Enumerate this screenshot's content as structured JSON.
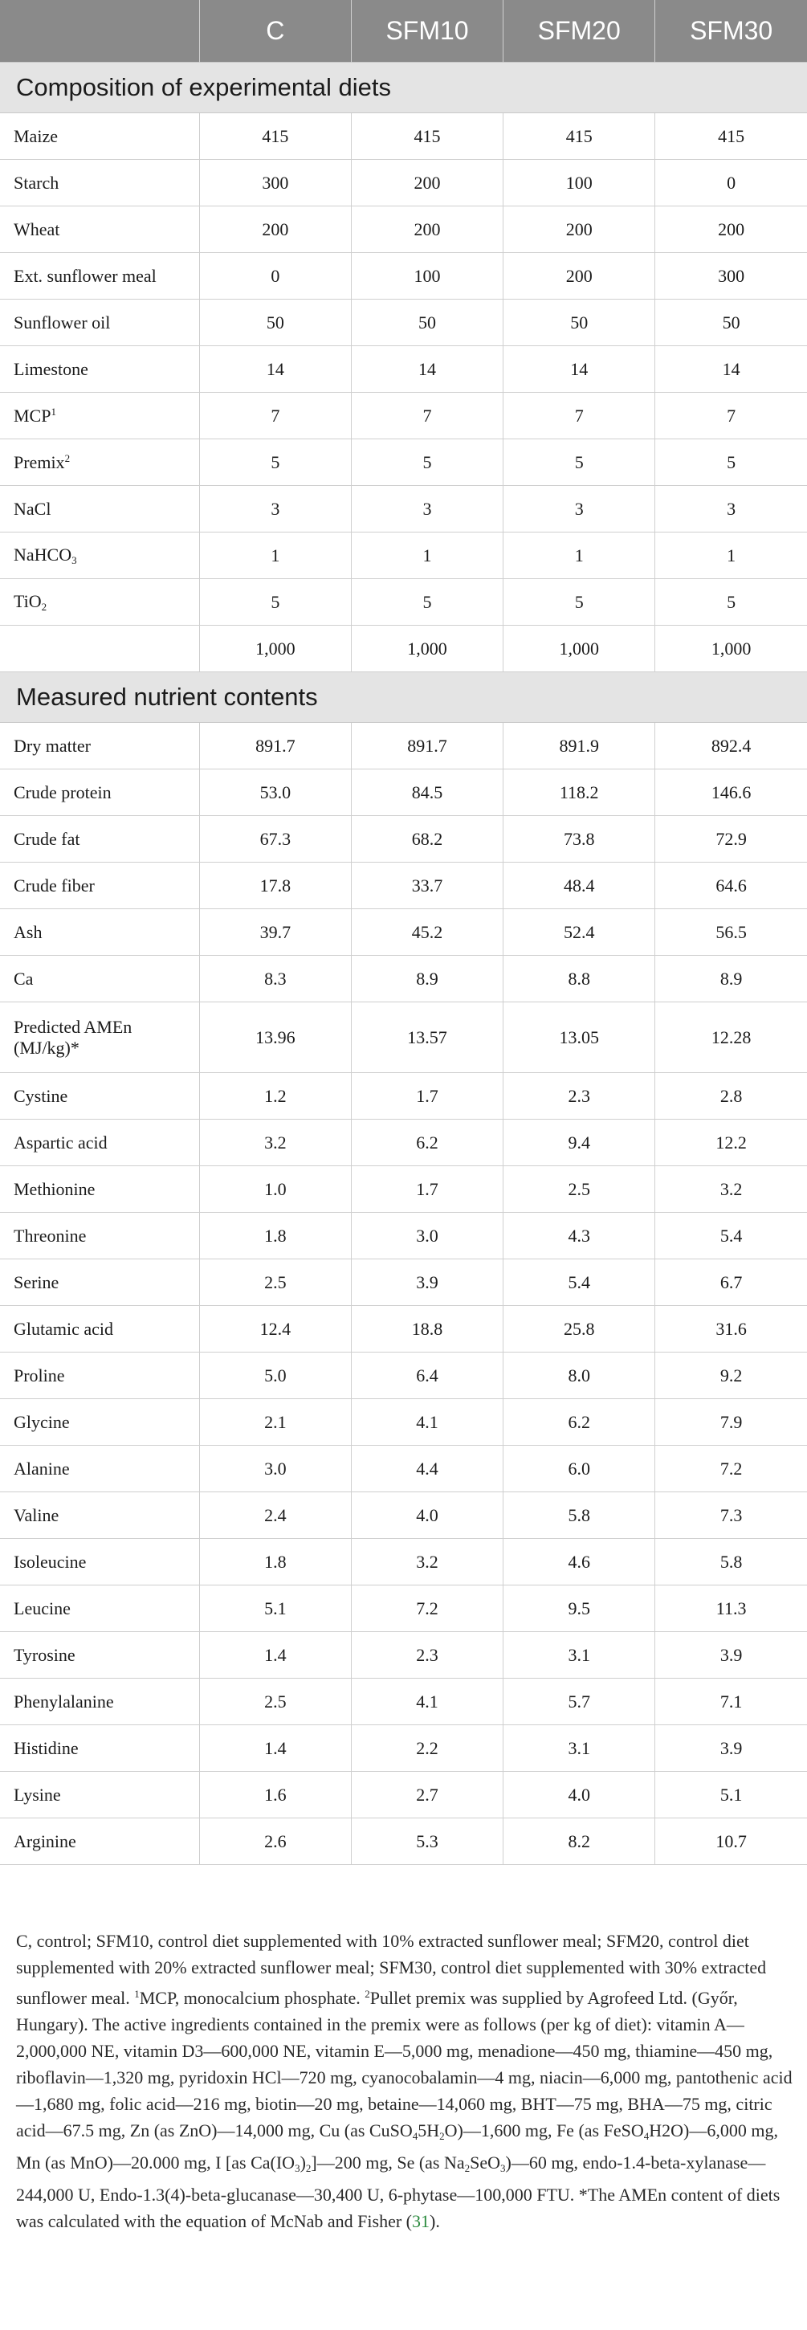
{
  "header": {
    "col0": "",
    "col1": "C",
    "col2": "SFM10",
    "col3": "SFM20",
    "col4": "SFM30"
  },
  "sections": {
    "composition": "Composition of experimental diets",
    "nutrients": "Measured nutrient contents"
  },
  "composition_rows": [
    {
      "label": "Maize",
      "values": [
        "415",
        "415",
        "415",
        "415"
      ]
    },
    {
      "label": "Starch",
      "values": [
        "300",
        "200",
        "100",
        "0"
      ]
    },
    {
      "label": "Wheat",
      "values": [
        "200",
        "200",
        "200",
        "200"
      ]
    },
    {
      "label": "Ext. sunflower meal",
      "values": [
        "0",
        "100",
        "200",
        "300"
      ]
    },
    {
      "label": "Sunflower oil",
      "values": [
        "50",
        "50",
        "50",
        "50"
      ]
    },
    {
      "label": "Limestone",
      "values": [
        "14",
        "14",
        "14",
        "14"
      ]
    },
    {
      "label": "MCP",
      "sup": "1",
      "values": [
        "7",
        "7",
        "7",
        "7"
      ]
    },
    {
      "label": "Premix",
      "sup": "2",
      "values": [
        "5",
        "5",
        "5",
        "5"
      ]
    },
    {
      "label": "NaCl",
      "values": [
        "3",
        "3",
        "3",
        "3"
      ]
    },
    {
      "label": "NaHCO",
      "sub": "3",
      "values": [
        "1",
        "1",
        "1",
        "1"
      ]
    },
    {
      "label": "TiO",
      "sub": "2",
      "values": [
        "5",
        "5",
        "5",
        "5"
      ]
    },
    {
      "label": "",
      "values": [
        "1,000",
        "1,000",
        "1,000",
        "1,000"
      ]
    }
  ],
  "nutrient_rows": [
    {
      "label": "Dry matter",
      "values": [
        "891.7",
        "891.7",
        "891.9",
        "892.4"
      ]
    },
    {
      "label": "Crude protein",
      "values": [
        "53.0",
        "84.5",
        "118.2",
        "146.6"
      ]
    },
    {
      "label": "Crude fat",
      "values": [
        "67.3",
        "68.2",
        "73.8",
        "72.9"
      ]
    },
    {
      "label": "Crude fiber",
      "values": [
        "17.8",
        "33.7",
        "48.4",
        "64.6"
      ]
    },
    {
      "label": "Ash",
      "values": [
        "39.7",
        "45.2",
        "52.4",
        "56.5"
      ]
    },
    {
      "label": "Ca",
      "values": [
        "8.3",
        "8.9",
        "8.8",
        "8.9"
      ]
    },
    {
      "label": "Predicted AMEn (MJ/kg)*",
      "tall": true,
      "values": [
        "13.96",
        "13.57",
        "13.05",
        "12.28"
      ]
    },
    {
      "label": "Cystine",
      "values": [
        "1.2",
        "1.7",
        "2.3",
        "2.8"
      ]
    },
    {
      "label": "Aspartic acid",
      "values": [
        "3.2",
        "6.2",
        "9.4",
        "12.2"
      ]
    },
    {
      "label": "Methionine",
      "values": [
        "1.0",
        "1.7",
        "2.5",
        "3.2"
      ]
    },
    {
      "label": "Threonine",
      "values": [
        "1.8",
        "3.0",
        "4.3",
        "5.4"
      ]
    },
    {
      "label": "Serine",
      "values": [
        "2.5",
        "3.9",
        "5.4",
        "6.7"
      ]
    },
    {
      "label": "Glutamic acid",
      "values": [
        "12.4",
        "18.8",
        "25.8",
        "31.6"
      ]
    },
    {
      "label": "Proline",
      "values": [
        "5.0",
        "6.4",
        "8.0",
        "9.2"
      ]
    },
    {
      "label": "Glycine",
      "values": [
        "2.1",
        "4.1",
        "6.2",
        "7.9"
      ]
    },
    {
      "label": "Alanine",
      "values": [
        "3.0",
        "4.4",
        "6.0",
        "7.2"
      ]
    },
    {
      "label": "Valine",
      "values": [
        "2.4",
        "4.0",
        "5.8",
        "7.3"
      ]
    },
    {
      "label": "Isoleucine",
      "values": [
        "1.8",
        "3.2",
        "4.6",
        "5.8"
      ]
    },
    {
      "label": "Leucine",
      "values": [
        "5.1",
        "7.2",
        "9.5",
        "11.3"
      ]
    },
    {
      "label": "Tyrosine",
      "values": [
        "1.4",
        "2.3",
        "3.1",
        "3.9"
      ]
    },
    {
      "label": "Phenylalanine",
      "values": [
        "2.5",
        "4.1",
        "5.7",
        "7.1"
      ]
    },
    {
      "label": "Histidine",
      "values": [
        "1.4",
        "2.2",
        "3.1",
        "3.9"
      ]
    },
    {
      "label": "Lysine",
      "values": [
        "1.6",
        "2.7",
        "4.0",
        "5.1"
      ]
    },
    {
      "label": "Arginine",
      "values": [
        "2.6",
        "5.3",
        "8.2",
        "10.7"
      ]
    }
  ],
  "footnote": {
    "p1": "C, control; SFM10, control diet supplemented with 10% extracted sunflower meal; SFM20, control diet supplemented with 20% extracted sunflower meal; SFM30, control diet supplemented with 30% extracted sunflower meal. ",
    "sup1": "1",
    "p2": "MCP, monocalcium phosphate. ",
    "sup2": "2",
    "p3": "Pullet premix was supplied by Agrofeed Ltd. (Győr, Hungary). The active ingredients contained in the premix were as follows (per kg of diet): vitamin A—2,000,000 NE, vitamin D3—600,000 NE, vitamin E—5,000 mg, menadione—450 mg, thiamine—450 mg, riboflavin—1,320 mg, pyridoxin HCl—720 mg, cyanocobalamin—4 mg, niacin—6,000 mg, pantothenic acid—1,680 mg, folic acid—216 mg, biotin—20 mg, betaine—14,060 mg, BHT—75 mg, BHA—75 mg, citric acid—67.5 mg, Zn (as ZnO)—14,000 mg, Cu (as CuSO",
    "sub_a": "4",
    "p4": "5H",
    "sub_b": "2",
    "p5": "O)—1,600 mg, Fe (as FeSO",
    "sub_c": "4",
    "p6": "H2O)—6,000 mg, Mn (as MnO)—20.000 mg, I [as Ca(IO",
    "sub_d": "3",
    "p7": ")",
    "sub_e": "2",
    "p8": "]—200 mg, Se (as Na",
    "sub_f": "2",
    "p9": "SeO",
    "sub_g": "3",
    "p10": ")—60 mg, endo-1.4-beta-xylanase—244,000 U, Endo-1.3(4)-beta-glucanase—30,400 U, 6-phytase—100,000 FTU. *The AMEn content of diets was calculated with the equation of McNab and Fisher (",
    "cite": "31",
    "p11": ")."
  }
}
